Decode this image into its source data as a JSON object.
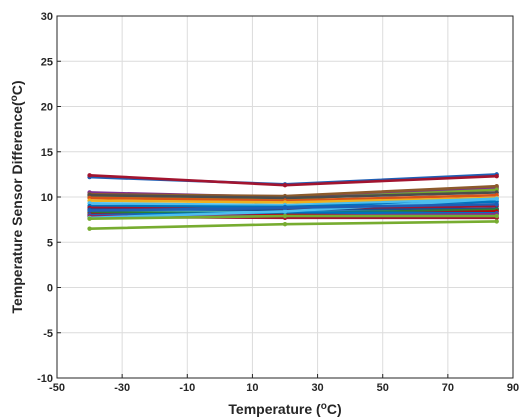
{
  "chart_data": {
    "type": "line",
    "title": "",
    "xlabel": "Temperature (°C)",
    "ylabel": "Temperature Sensor Difference(°C)",
    "xlim": [
      -50,
      90
    ],
    "ylim": [
      -10,
      30
    ],
    "xticks": [
      -50,
      -30,
      -10,
      10,
      30,
      50,
      70,
      90
    ],
    "yticks": [
      -10,
      -5,
      0,
      5,
      10,
      15,
      20,
      25,
      30
    ],
    "grid": true,
    "legend": "none",
    "x": [
      -40,
      20,
      85
    ],
    "series": [
      {
        "color": "#1f5fb5",
        "values": [
          12.2,
          11.4,
          12.5
        ]
      },
      {
        "color": "#a2142f",
        "values": [
          12.4,
          11.3,
          12.3
        ]
      },
      {
        "color": "#7e2f8e",
        "values": [
          10.5,
          10.0,
          11.0
        ]
      },
      {
        "color": "#8c5a2b",
        "values": [
          10.3,
          10.1,
          11.2
        ]
      },
      {
        "color": "#77ac30",
        "values": [
          10.0,
          9.8,
          10.8
        ]
      },
      {
        "color": "#4d4d4d",
        "values": [
          10.2,
          9.9,
          10.5
        ]
      },
      {
        "color": "#d95319",
        "values": [
          9.9,
          9.6,
          10.2
        ]
      },
      {
        "color": "#edb120",
        "values": [
          9.6,
          9.4,
          9.9
        ]
      },
      {
        "color": "#4dbeee",
        "values": [
          9.3,
          9.1,
          9.8
        ]
      },
      {
        "color": "#0072bd",
        "values": [
          9.0,
          8.9,
          9.5
        ]
      },
      {
        "color": "#a2142f",
        "values": [
          8.8,
          8.6,
          9.0
        ]
      },
      {
        "color": "#1a4f8f",
        "values": [
          8.6,
          8.5,
          8.7
        ]
      },
      {
        "color": "#4dbeee",
        "values": [
          8.4,
          8.3,
          8.5
        ]
      },
      {
        "color": "#2e7d32",
        "values": [
          8.3,
          8.2,
          8.6
        ]
      },
      {
        "color": "#c00000",
        "values": [
          8.1,
          8.0,
          8.4
        ]
      },
      {
        "color": "#0072bd",
        "values": [
          8.0,
          8.3,
          8.2
        ]
      },
      {
        "color": "#7e2f8e",
        "values": [
          7.9,
          7.9,
          8.1
        ]
      },
      {
        "color": "#a2142f",
        "values": [
          7.8,
          7.7,
          7.7
        ]
      },
      {
        "color": "#4dbeee",
        "values": [
          7.7,
          8.4,
          9.8
        ]
      },
      {
        "color": "#1f5fb5",
        "values": [
          8.5,
          8.8,
          9.2
        ]
      },
      {
        "color": "#77ac30",
        "values": [
          7.6,
          7.9,
          7.9
        ]
      },
      {
        "color": "#77ac30",
        "values": [
          6.5,
          7.0,
          7.3
        ]
      }
    ]
  }
}
